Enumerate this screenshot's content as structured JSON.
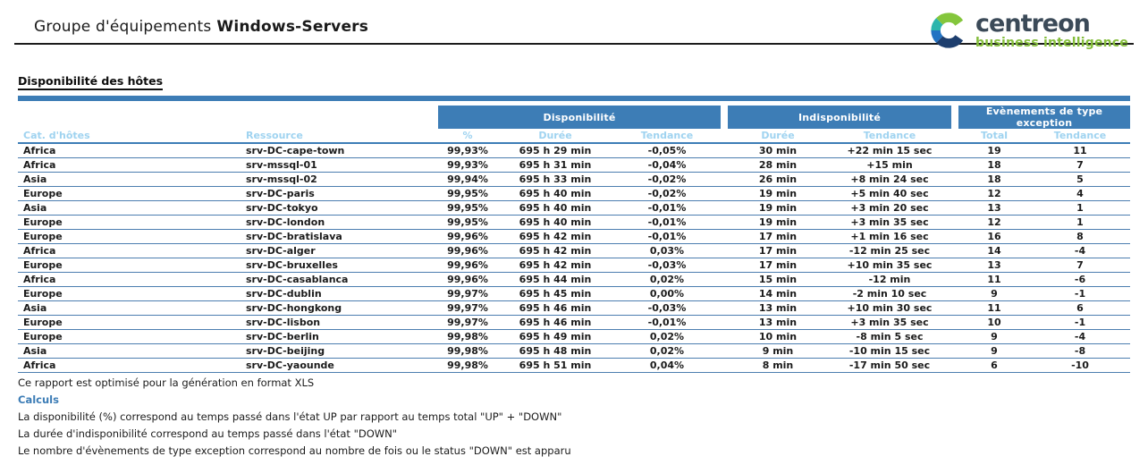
{
  "header": {
    "title_prefix": "Groupe d'équipements",
    "title_bold": "Windows-Servers",
    "logo": {
      "name": "centreon",
      "subtitle": "business intelligence"
    }
  },
  "section": {
    "title": "Disponibilité des hôtes"
  },
  "table": {
    "group_headers": [
      {
        "label": "Disponibilité"
      },
      {
        "label": "Indisponibilité"
      },
      {
        "label": "Evènements de type exception"
      }
    ],
    "columns": [
      "Cat. d'hôtes",
      "Ressource",
      "%",
      "Durée",
      "Tendance",
      "Durée",
      "Tendance",
      "Total",
      "Tendance"
    ],
    "column_keys": [
      "category",
      "resource",
      "availability-pct",
      "availability-duration",
      "availability-trend",
      "unavailability-duration",
      "unavailability-trend",
      "exception-total",
      "exception-trend"
    ],
    "rows": [
      [
        "Africa",
        "srv-DC-cape-town",
        "99,93%",
        "695 h 29 min",
        "-0,05%",
        "30 min",
        "+22 min 15 sec",
        "19",
        "11"
      ],
      [
        "Africa",
        "srv-mssql-01",
        "99,93%",
        "695 h 31 min",
        "-0,04%",
        "28 min",
        "+15 min",
        "18",
        "7"
      ],
      [
        "Asia",
        "srv-mssql-02",
        "99,94%",
        "695 h 33 min",
        "-0,02%",
        "26 min",
        "+8 min 24 sec",
        "18",
        "5"
      ],
      [
        "Europe",
        "srv-DC-paris",
        "99,95%",
        "695 h 40 min",
        "-0,02%",
        "19 min",
        "+5 min 40 sec",
        "12",
        "4"
      ],
      [
        "Asia",
        "srv-DC-tokyo",
        "99,95%",
        "695 h 40 min",
        "-0,01%",
        "19 min",
        "+3 min 20 sec",
        "13",
        "1"
      ],
      [
        "Europe",
        "srv-DC-london",
        "99,95%",
        "695 h 40 min",
        "-0,01%",
        "19 min",
        "+3 min 35 sec",
        "12",
        "1"
      ],
      [
        "Europe",
        "srv-DC-bratislava",
        "99,96%",
        "695 h 42 min",
        "-0,01%",
        "17 min",
        "+1 min 16 sec",
        "16",
        "8"
      ],
      [
        "Africa",
        "srv-DC-alger",
        "99,96%",
        "695 h 42 min",
        "0,03%",
        "17 min",
        "-12 min 25 sec",
        "14",
        "-4"
      ],
      [
        "Europe",
        "srv-DC-bruxelles",
        "99,96%",
        "695 h 42 min",
        "-0,03%",
        "17 min",
        "+10 min 35 sec",
        "13",
        "7"
      ],
      [
        "Africa",
        "srv-DC-casablanca",
        "99,96%",
        "695 h 44 min",
        "0,02%",
        "15 min",
        "-12 min",
        "11",
        "-6"
      ],
      [
        "Europe",
        "srv-DC-dublin",
        "99,97%",
        "695 h 45 min",
        "0,00%",
        "14 min",
        "-2 min 10 sec",
        "9",
        "-1"
      ],
      [
        "Asia",
        "srv-DC-hongkong",
        "99,97%",
        "695 h 46 min",
        "-0,03%",
        "13 min",
        "+10 min 30 sec",
        "11",
        "6"
      ],
      [
        "Europe",
        "srv-DC-lisbon",
        "99,97%",
        "695 h 46 min",
        "-0,01%",
        "13 min",
        "+3 min 35 sec",
        "10",
        "-1"
      ],
      [
        "Europe",
        "srv-DC-berlin",
        "99,98%",
        "695 h 49 min",
        "0,02%",
        "10 min",
        "-8 min 5 sec",
        "9",
        "-4"
      ],
      [
        "Asia",
        "srv-DC-beijing",
        "99,98%",
        "695 h 48 min",
        "0,02%",
        "9 min",
        "-10 min 15 sec",
        "9",
        "-8"
      ],
      [
        "Africa",
        "srv-DC-yaounde",
        "99,98%",
        "695 h 51 min",
        "0,04%",
        "8 min",
        "-17 min 50 sec",
        "6",
        "-10"
      ]
    ]
  },
  "footer": {
    "note": "Ce rapport est optimisé pour la génération en format XLS",
    "calculs_label": "Calculs",
    "lines": [
      "La disponibilité (%) correspond au temps passé dans l'état UP par rapport au temps total \"UP\" + \"DOWN\"",
      "La durée d'indisponibilité correspond au temps passé dans l'état \"DOWN\"",
      "Le nombre d'évènements de type exception correspond au nombre de fois ou le status \"DOWN\" est apparu"
    ]
  },
  "colors": {
    "accent_blue": "#3d7db6",
    "light_blue": "#9fd3f0",
    "row_line": "#4c7eb0",
    "logo_green": "#84bd3b",
    "logo_teal": "#2cb5ac",
    "logo_blue": "#2273c3",
    "logo_navy": "#1d3e6e",
    "logo_dark_text": "#3b4a58"
  }
}
